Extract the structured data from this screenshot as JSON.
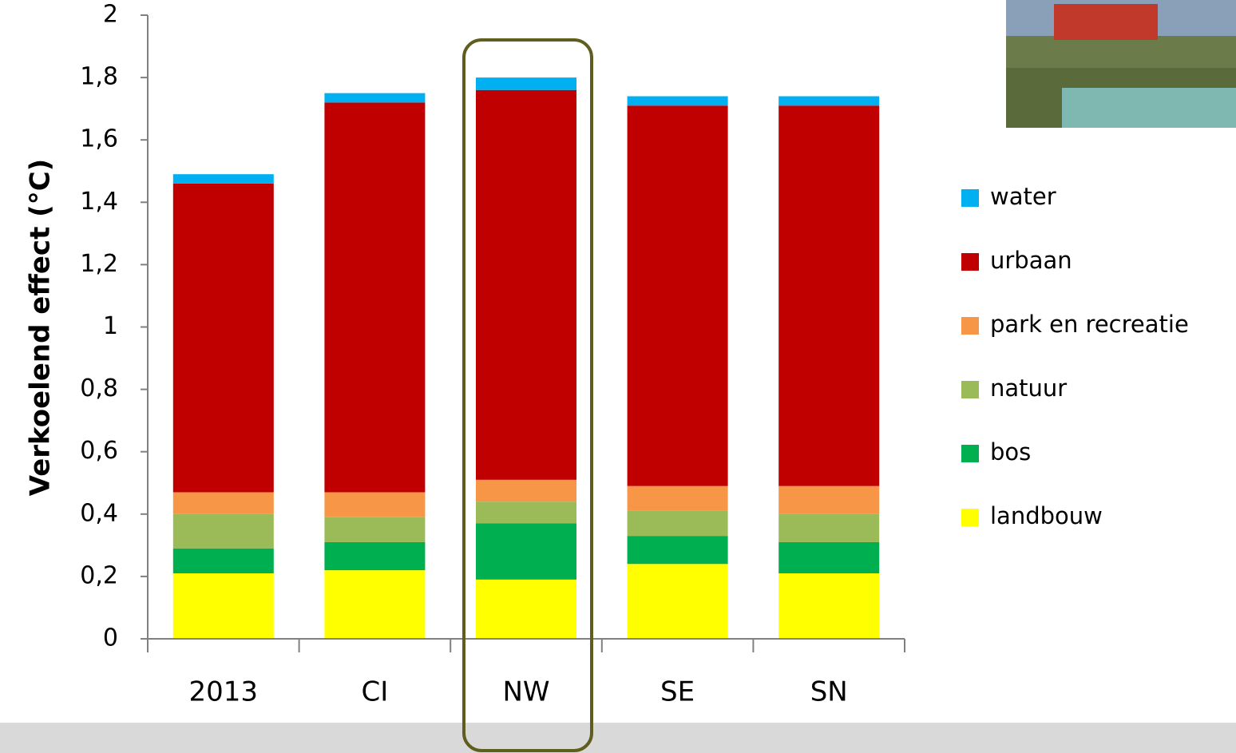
{
  "chart_data": {
    "type": "stacked_bar",
    "y_label": "Verkoelend effect (°C)",
    "categories": [
      "2013",
      "CI",
      "NW",
      "SE",
      "SN"
    ],
    "series": [
      {
        "name": "landbouw",
        "color": "#ffff00",
        "values": [
          0.21,
          0.22,
          0.19,
          0.24,
          0.21
        ]
      },
      {
        "name": "bos",
        "color": "#00b050",
        "values": [
          0.08,
          0.09,
          0.18,
          0.09,
          0.1
        ]
      },
      {
        "name": "natuur",
        "color": "#9bbb59",
        "values": [
          0.11,
          0.08,
          0.07,
          0.08,
          0.09
        ]
      },
      {
        "name": "park en recreatie",
        "color": "#f79646",
        "values": [
          0.07,
          0.08,
          0.07,
          0.08,
          0.09
        ]
      },
      {
        "name": "urbaan",
        "color": "#c00000",
        "values": [
          0.99,
          1.25,
          1.25,
          1.22,
          1.22
        ]
      },
      {
        "name": "water",
        "color": "#00b0f0",
        "values": [
          0.03,
          0.03,
          0.04,
          0.03,
          0.03
        ]
      }
    ],
    "ylim": [
      0,
      2
    ],
    "yticks": [
      0,
      {
        "value": 0.2,
        "label": "0,2"
      },
      {
        "value": 0.4,
        "label": "0,4"
      },
      {
        "value": 0.6,
        "label": "0,6"
      },
      {
        "value": 0.8,
        "label": "0,8"
      },
      1,
      {
        "value": 1.2,
        "label": "1,2"
      },
      {
        "value": 1.4,
        "label": "1,4"
      },
      {
        "value": 1.6,
        "label": "1,6"
      },
      {
        "value": 1.8,
        "label": "1,8"
      },
      2
    ],
    "grid": false,
    "legend": "right"
  }
}
